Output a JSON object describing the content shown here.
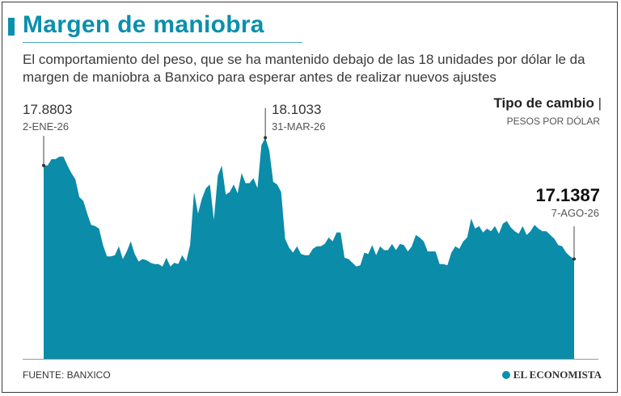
{
  "header": {
    "title": "Margen de maniobra",
    "subtitle": "El comportamiento del peso, que se ha mantenido debajo de las 18 unidades por dólar le da margen de maniobra a Banxico para esperar antes de realizar nuevos ajustes"
  },
  "legend": {
    "title": "Tipo de cambio",
    "separator": "|",
    "unit": "PESOS POR DÓLAR"
  },
  "annotations": {
    "first": {
      "value": "17.8803",
      "date": "2-ENE-26"
    },
    "max": {
      "value": "18.1033",
      "date": "31-MAR-26"
    },
    "last": {
      "value": "17.1387",
      "date": "7-AGO-26"
    }
  },
  "footer": {
    "source": "FUENTE: BANXICO",
    "brand": "EL ECONOMISTA"
  },
  "colors": {
    "accent": "#0a8fae",
    "area": "#0b8ca8",
    "text": "#3a3a3a"
  },
  "chart_data": {
    "type": "area",
    "title": "Tipo de cambio",
    "ylabel": "PESOS POR DÓLAR",
    "x_start": "2-ENE-26",
    "x_end": "7-AGO-26",
    "ylim": [
      16.35,
      18.23
    ],
    "grid": false,
    "legend": "top-right",
    "series": [
      {
        "name": "Tipo de cambio",
        "values": [
          17.88,
          17.88,
          17.93,
          17.93,
          17.95,
          17.95,
          17.88,
          17.82,
          17.77,
          17.63,
          17.6,
          17.5,
          17.41,
          17.4,
          17.38,
          17.25,
          17.16,
          17.16,
          17.17,
          17.24,
          17.14,
          17.2,
          17.28,
          17.18,
          17.12,
          17.14,
          17.13,
          17.11,
          17.1,
          17.1,
          17.08,
          17.15,
          17.08,
          17.11,
          17.1,
          17.17,
          17.12,
          17.25,
          17.67,
          17.5,
          17.62,
          17.7,
          17.73,
          17.45,
          17.8,
          17.88,
          17.65,
          17.67,
          17.73,
          17.66,
          17.82,
          17.74,
          17.74,
          17.78,
          17.7,
          18.04,
          18.1,
          18.0,
          17.75,
          17.73,
          17.67,
          17.3,
          17.23,
          17.19,
          17.24,
          17.18,
          17.17,
          17.17,
          17.22,
          17.24,
          17.24,
          17.26,
          17.31,
          17.28,
          17.35,
          17.35,
          17.15,
          17.14,
          17.11,
          17.08,
          17.09,
          17.19,
          17.18,
          17.25,
          17.17,
          17.24,
          17.21,
          17.21,
          17.26,
          17.21,
          17.26,
          17.25,
          17.2,
          17.24,
          17.33,
          17.31,
          17.28,
          17.2,
          17.2,
          17.2,
          17.1,
          17.1,
          17.09,
          17.19,
          17.24,
          17.22,
          17.28,
          17.31,
          17.46,
          17.38,
          17.4,
          17.35,
          17.38,
          17.36,
          17.4,
          17.34,
          17.42,
          17.44,
          17.39,
          17.36,
          17.34,
          17.4,
          17.33,
          17.36,
          17.41,
          17.38,
          17.36,
          17.36,
          17.33,
          17.3,
          17.25,
          17.24,
          17.19,
          17.16,
          17.14
        ]
      }
    ]
  }
}
